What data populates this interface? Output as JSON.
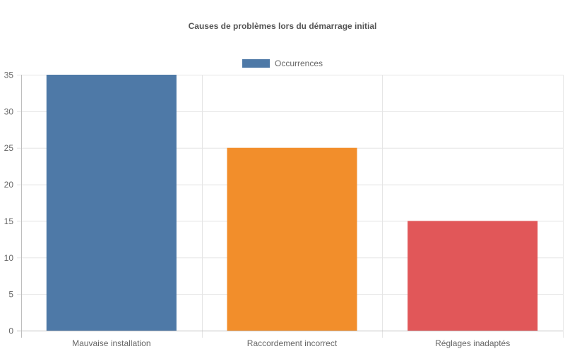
{
  "chart_data": {
    "type": "bar",
    "title": "Causes de problèmes lors du démarrage initial",
    "categories": [
      "Mauvaise installation",
      "Raccordement incorrect",
      "Réglages inadaptés"
    ],
    "series": [
      {
        "name": "Occurrences",
        "values": [
          35,
          25,
          15
        ],
        "colors": [
          "#4e79a7",
          "#f28e2b",
          "#e15759"
        ]
      }
    ],
    "xlabel": "",
    "ylabel": "",
    "ylim": [
      0,
      35
    ],
    "yticks": [
      0,
      5,
      10,
      15,
      20,
      25,
      30,
      35
    ],
    "grid": true,
    "legend_position": "top-center"
  }
}
